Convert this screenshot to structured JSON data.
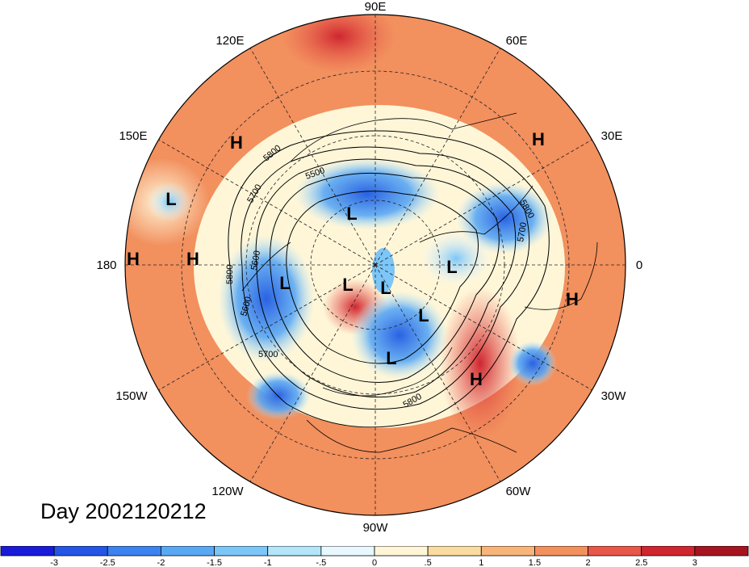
{
  "date_label": "Day 2002120212",
  "lon_labels": {
    "lon_90e": "90E",
    "lon_60e": "60E",
    "lon_30e": "30E",
    "lon_0": "0",
    "lon_30w": "30W",
    "lon_60w": "60W",
    "lon_90w": "90W",
    "lon_120w": "120W",
    "lon_150w": "150W",
    "lon_180": "180",
    "lon_150e": "150E",
    "lon_120e": "120E"
  },
  "pressure_centers": {
    "high_label": "H",
    "low_label": "L"
  },
  "contours": {
    "c5500": "5500",
    "c5600": "5600",
    "c5700": "5700",
    "c5800": "5800"
  },
  "colorbar": {
    "ticks": [
      "-3",
      "-2.5",
      "-2",
      "-1.5",
      "-1",
      "-.5",
      "0",
      ".5",
      "1",
      "1.5",
      "2",
      "2.5",
      "3"
    ],
    "colors": [
      "#1a1ad9",
      "#2455e6",
      "#3d82ee",
      "#5aa8f4",
      "#7cc6f8",
      "#b3e6fb",
      "#e9f8ff",
      "#fff6d8",
      "#fbdca0",
      "#f7b57a",
      "#f2905e",
      "#e9564a",
      "#cf2630",
      "#a5141f"
    ]
  }
}
